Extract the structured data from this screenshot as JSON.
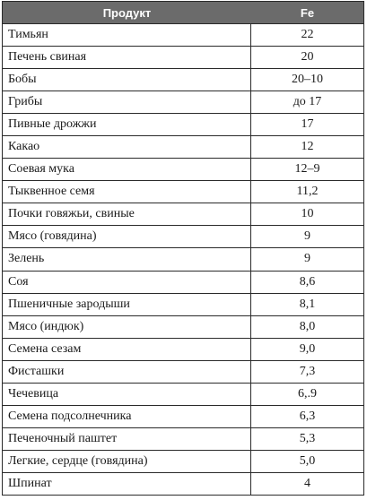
{
  "table": {
    "headers": [
      "Продукт",
      "Fe"
    ],
    "rows": [
      [
        "Тимьян",
        "22"
      ],
      [
        "Печень свиная",
        "20"
      ],
      [
        "Бобы",
        "20–10"
      ],
      [
        "Грибы",
        "до 17"
      ],
      [
        "Пивные дрожжи",
        "17"
      ],
      [
        "Какао",
        "12"
      ],
      [
        "Соевая мука",
        "12–9"
      ],
      [
        "Тыквенное семя",
        "11,2"
      ],
      [
        "Почки говяжьи, свиные",
        "10"
      ],
      [
        "Мясо (говядина)",
        "9"
      ],
      [
        "Зелень",
        "9"
      ],
      [
        "Соя",
        "8,6"
      ],
      [
        "Пшеничные зародыши",
        "8,1"
      ],
      [
        "Мясо (индюк)",
        "8,0"
      ],
      [
        "Семена сезам",
        "9,0"
      ],
      [
        "Фисташки",
        "7,3"
      ],
      [
        "Чечевица",
        "6,.9"
      ],
      [
        "Семена подсолнечника",
        "6,3"
      ],
      [
        "Печеночный паштет",
        "5,3"
      ],
      [
        "Легкие, сердце (говядина)",
        "5,0"
      ],
      [
        "Шпинат",
        "4"
      ]
    ]
  },
  "colors": {
    "header_bg": "#6b6b6b",
    "header_text": "#ffffff",
    "border": "#2a2a2a"
  }
}
